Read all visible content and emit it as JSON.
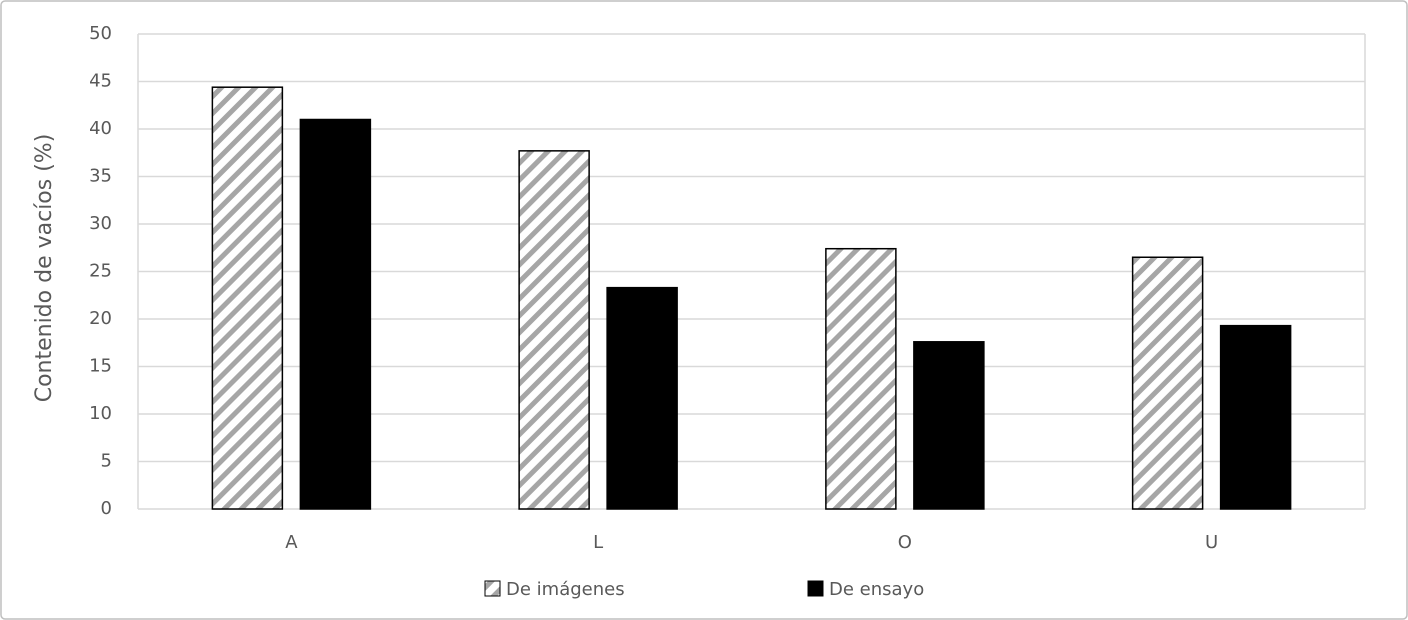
{
  "chart_data": {
    "type": "bar",
    "y_label": "Contenido de vacíos (%)",
    "categories": [
      "A",
      "L",
      "O",
      "U"
    ],
    "series": [
      {
        "name": "De imágenes",
        "color": "#a6a6a6",
        "hatch": true,
        "values": [
          44.4,
          37.7,
          27.4,
          26.5
        ]
      },
      {
        "name": "De ensayo",
        "color": "#000000",
        "hatch": false,
        "values": [
          41.0,
          23.3,
          17.6,
          19.3
        ]
      }
    ],
    "ylim": [
      0,
      50
    ],
    "yticks": [
      0,
      5,
      10,
      15,
      20,
      25,
      30,
      35,
      40,
      45,
      50
    ],
    "grid": true,
    "legend": "bottom"
  }
}
